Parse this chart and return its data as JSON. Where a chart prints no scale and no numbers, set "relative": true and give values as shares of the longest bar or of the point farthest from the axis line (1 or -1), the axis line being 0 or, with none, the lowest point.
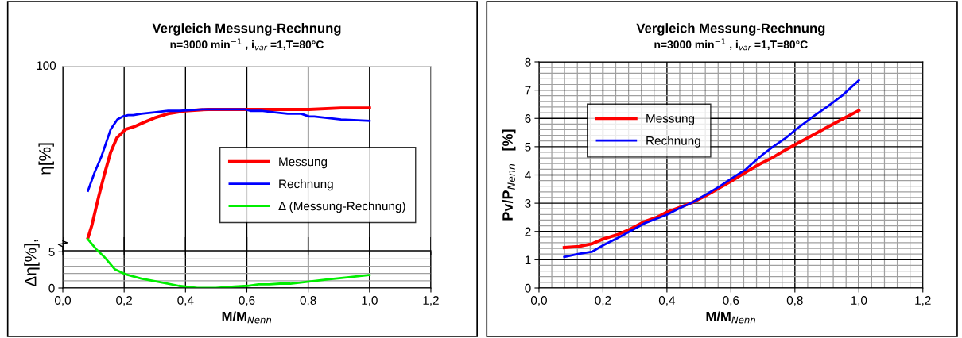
{
  "chart_data": [
    {
      "type": "line",
      "title": "Vergleich Messung-Rechnung",
      "subtitle": "n=3000 min$^{−1}$ , i$_{var}$ =1,T=80°C",
      "ylabel": "η[%]",
      "xlim": [
        0,
        1.2
      ],
      "xticks": [
        0,
        0.2,
        0.4,
        0.6,
        0.8,
        1.0,
        1.2
      ],
      "relative": true,
      "annotations": [
        "100"
      ],
      "tick_labels": false,
      "grid": "x",
      "legend": "right",
      "series": [
        {
          "name": "Messung",
          "color": "#ff0000",
          "x": [
            0.082,
            0.095,
            0.117,
            0.135,
            0.156,
            0.176,
            0.204,
            0.234,
            0.265,
            0.299,
            0.343,
            0.399,
            0.473,
            0.56,
            0.647,
            0.733,
            0.803,
            0.907,
            1.0
          ],
          "values": [
            0.09,
            0.18,
            0.38,
            0.53,
            0.69,
            0.79,
            0.85,
            0.87,
            0.9,
            0.93,
            0.96,
            0.98,
            0.99,
            0.99,
            0.99,
            0.99,
            0.99,
            1,
            1
          ]
        },
        {
          "name": "Rechnung",
          "color": "#0000ff",
          "x": [
            0.082,
            0.104,
            0.126,
            0.156,
            0.178,
            0.195,
            0.213,
            0.23,
            0.256,
            0.299,
            0.343,
            0.386,
            0.456,
            0.543,
            0.595,
            0.612,
            0.647,
            0.69,
            0.733,
            0.777,
            0.803,
            0.82,
            0.907,
            1.0
          ],
          "values": [
            0.42,
            0.55,
            0.66,
            0.85,
            0.92,
            0.94,
            0.95,
            0.95,
            0.96,
            0.97,
            0.98,
            0.98,
            0.99,
            0.99,
            0.99,
            0.98,
            0.98,
            0.97,
            0.96,
            0.96,
            0.94,
            0.94,
            0.92,
            0.91
          ]
        }
      ]
    },
    {
      "type": "line",
      "xlabel": "M/M$_{Nenn}$",
      "ylabel": "Δη[%],",
      "xlim": [
        0,
        1.2
      ],
      "xticks": [
        {
          "value": 0,
          "label": "0,0"
        },
        {
          "value": 0.2,
          "label": "0,2"
        },
        {
          "value": 0.4,
          "label": "0,4"
        },
        {
          "value": 0.6,
          "label": "0,6"
        },
        {
          "value": 0.8,
          "label": "0,8"
        },
        {
          "value": 1.0,
          "label": "1,0"
        },
        {
          "value": 1.2,
          "label": "1,2"
        }
      ],
      "ylim": [
        0,
        7
      ],
      "yticks": [
        0,
        {
          "value": 1,
          "label": null
        },
        {
          "value": 2,
          "label": null
        },
        {
          "value": 3,
          "label": null
        },
        {
          "value": 4,
          "label": null
        },
        5
      ],
      "grid": true,
      "legend": "top",
      "series": [
        {
          "name": "Δ (Messung-Rechnung)",
          "color": "#00ee00",
          "x": [
            0.082,
            0.108,
            0.135,
            0.169,
            0.204,
            0.256,
            0.317,
            0.378,
            0.438,
            0.499,
            0.56,
            0.603,
            0.638,
            0.673,
            0.708,
            0.742,
            0.803,
            0.864,
            0.933,
            1.0
          ],
          "values": [
            6.7,
            5.4,
            4.3,
            2.6,
            1.9,
            1.3,
            0.8,
            0.3,
            0.0,
            0.0,
            0.2,
            0.3,
            0.5,
            0.5,
            0.6,
            0.6,
            0.9,
            1.2,
            1.5,
            1.8
          ]
        }
      ]
    },
    {
      "type": "line",
      "title": "Vergleich Messung-Rechnung",
      "subtitle": "n=3000 min$^{−1}$ , i$_{var}$ =1,T=80°C",
      "xlabel": "M/M$_{Nenn}$",
      "ylabel": "Pv/P$_{Nenn}$   [%]",
      "xlim": [
        0,
        1.2
      ],
      "xticks": [
        {
          "value": 0,
          "label": "0,0"
        },
        {
          "value": 0.04,
          "label": null
        },
        {
          "value": 0.08,
          "label": null
        },
        {
          "value": 0.12,
          "label": null
        },
        {
          "value": 0.16,
          "label": null
        },
        {
          "value": 0.2,
          "label": "0,2"
        },
        {
          "value": 0.24,
          "label": null
        },
        {
          "value": 0.28,
          "label": null
        },
        {
          "value": 0.32,
          "label": null
        },
        {
          "value": 0.36,
          "label": null
        },
        {
          "value": 0.4,
          "label": "0,4"
        },
        {
          "value": 0.44,
          "label": null
        },
        {
          "value": 0.48,
          "label": null
        },
        {
          "value": 0.52,
          "label": null
        },
        {
          "value": 0.56,
          "label": null
        },
        {
          "value": 0.6,
          "label": "0,6"
        },
        {
          "value": 0.64,
          "label": null
        },
        {
          "value": 0.68,
          "label": null
        },
        {
          "value": 0.72,
          "label": null
        },
        {
          "value": 0.76,
          "label": null
        },
        {
          "value": 0.8,
          "label": "0,8"
        },
        {
          "value": 0.84,
          "label": null
        },
        {
          "value": 0.88,
          "label": null
        },
        {
          "value": 0.92,
          "label": null
        },
        {
          "value": 0.96,
          "label": null
        },
        {
          "value": 1.0,
          "label": "1,0"
        },
        {
          "value": 1.04,
          "label": null
        },
        {
          "value": 1.08,
          "label": null
        },
        {
          "value": 1.12,
          "label": null
        },
        {
          "value": 1.16,
          "label": null
        },
        {
          "value": 1.2,
          "label": "1,2"
        }
      ],
      "ylim": [
        0,
        8
      ],
      "yticks": [
        0,
        {
          "value": 0.2,
          "label": null
        },
        {
          "value": 0.4,
          "label": null
        },
        {
          "value": 0.6,
          "label": null
        },
        {
          "value": 0.8,
          "label": null
        },
        1,
        {
          "value": 1.2,
          "label": null
        },
        {
          "value": 1.4,
          "label": null
        },
        {
          "value": 1.6,
          "label": null
        },
        {
          "value": 1.8,
          "label": null
        },
        2,
        {
          "value": 2.2,
          "label": null
        },
        {
          "value": 2.4,
          "label": null
        },
        {
          "value": 2.6,
          "label": null
        },
        {
          "value": 2.8,
          "label": null
        },
        3,
        {
          "value": 3.2,
          "label": null
        },
        {
          "value": 3.4,
          "label": null
        },
        {
          "value": 3.6,
          "label": null
        },
        {
          "value": 3.8,
          "label": null
        },
        4,
        {
          "value": 4.2,
          "label": null
        },
        {
          "value": 4.4,
          "label": null
        },
        {
          "value": 4.6,
          "label": null
        },
        {
          "value": 4.8,
          "label": null
        },
        5,
        {
          "value": 5.2,
          "label": null
        },
        {
          "value": 5.4,
          "label": null
        },
        {
          "value": 5.6,
          "label": null
        },
        {
          "value": 5.8,
          "label": null
        },
        6,
        {
          "value": 6.2,
          "label": null
        },
        {
          "value": 6.4,
          "label": null
        },
        {
          "value": 6.6,
          "label": null
        },
        {
          "value": 6.8,
          "label": null
        },
        7,
        {
          "value": 7.2,
          "label": null
        },
        {
          "value": 7.4,
          "label": null
        },
        {
          "value": 7.6,
          "label": null
        },
        {
          "value": 7.8,
          "label": null
        },
        8
      ],
      "grid": true,
      "legend": "upper left",
      "series": [
        {
          "name": "Messung",
          "color": "#ff0000",
          "x": [
            0.079,
            0.125,
            0.167,
            0.2,
            0.246,
            0.288,
            0.33,
            0.372,
            0.399,
            0.439,
            0.48,
            0.522,
            0.564,
            0.601,
            0.647,
            0.689,
            0.731,
            0.773,
            0.802,
            0.856,
            0.898,
            0.948,
            1.0
          ],
          "values": [
            1.43,
            1.47,
            1.57,
            1.73,
            1.89,
            2.1,
            2.35,
            2.52,
            2.68,
            2.85,
            3.03,
            3.27,
            3.54,
            3.78,
            4.1,
            4.38,
            4.62,
            4.9,
            5.08,
            5.41,
            5.67,
            5.97,
            6.28
          ]
        },
        {
          "name": "Rechnung",
          "color": "#0000ff",
          "x": [
            0.079,
            0.125,
            0.167,
            0.2,
            0.246,
            0.288,
            0.33,
            0.372,
            0.399,
            0.439,
            0.48,
            0.522,
            0.564,
            0.601,
            0.647,
            0.664,
            0.698,
            0.731,
            0.773,
            0.802,
            0.856,
            0.898,
            0.948,
            1.0
          ],
          "values": [
            1.1,
            1.21,
            1.29,
            1.51,
            1.77,
            2.03,
            2.29,
            2.47,
            2.59,
            2.82,
            3.03,
            3.31,
            3.59,
            3.87,
            4.2,
            4.38,
            4.71,
            4.99,
            5.32,
            5.6,
            6.06,
            6.39,
            6.81,
            7.35
          ]
        }
      ]
    }
  ]
}
